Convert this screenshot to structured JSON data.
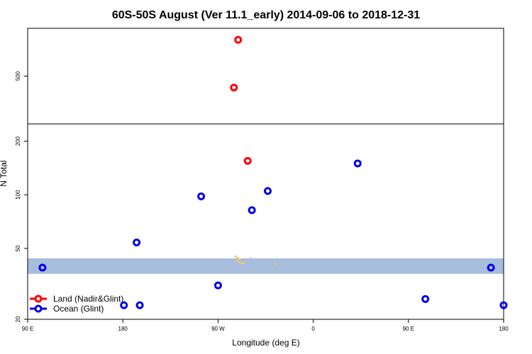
{
  "chart_data": {
    "type": "scatter",
    "title": "60S-50S August (Ver 11.1_early)   2014-09-06 to 2018-12-31",
    "xlabel": "Longitude (deg E)",
    "ylabel": "N Total",
    "x_ticks": [
      {
        "value": 90,
        "label": "90 E"
      },
      {
        "value": 180,
        "label": "180"
      },
      {
        "value": 270,
        "label": "90 W"
      },
      {
        "value": 360,
        "label": "0"
      },
      {
        "value": 450,
        "label": "90 E"
      },
      {
        "value": 540,
        "label": "180"
      }
    ],
    "xlim": [
      90,
      540
    ],
    "lower_panel": {
      "scale": "log",
      "ylim": [
        20,
        250
      ],
      "y_ticks": [
        {
          "value": 20,
          "label": "20"
        },
        {
          "value": 50,
          "label": "50"
        },
        {
          "value": 100,
          "label": "100"
        },
        {
          "value": 200,
          "label": "200"
        }
      ]
    },
    "upper_panel": {
      "scale": "linear",
      "ylim": [
        250,
        750
      ],
      "y_ticks": [
        {
          "value": 500,
          "label": "500"
        }
      ]
    },
    "land_band": {
      "ymin": 36,
      "ymax": 44,
      "color": "#a8bcdc",
      "land_color": "#f5c96a"
    },
    "series": [
      {
        "name": "Land (Nadir&Glint)",
        "color": "#ff0000",
        "points": [
          [
            289,
            690
          ],
          [
            285,
            440
          ],
          [
            298,
            155
          ]
        ]
      },
      {
        "name": "Ocean (Glint)",
        "color": "#0000e6",
        "points": [
          [
            104,
            39
          ],
          [
            193,
            54
          ],
          [
            254,
            98
          ],
          [
            317,
            105
          ],
          [
            302,
            82
          ],
          [
            270,
            31
          ],
          [
            181,
            24
          ],
          [
            402,
            150
          ],
          [
            466,
            26
          ],
          [
            196,
            24
          ],
          [
            528,
            39
          ],
          [
            540,
            24
          ]
        ]
      }
    ],
    "legend_position": "bottom-left"
  }
}
